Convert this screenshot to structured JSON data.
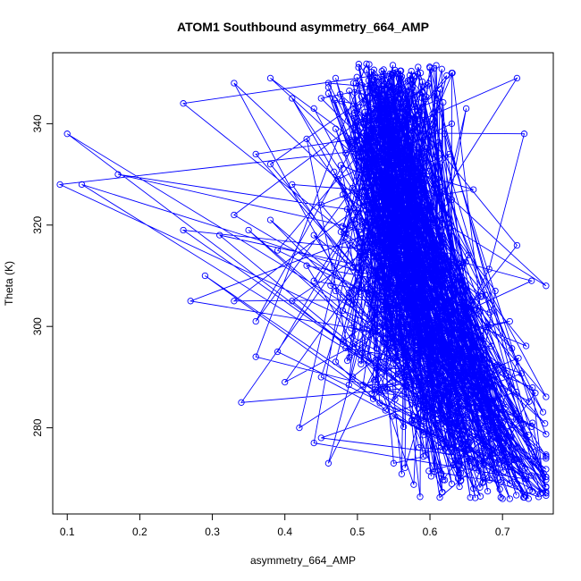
{
  "chart_data": {
    "type": "line",
    "title": "ATOM1 Southbound asymmetry_664_AMP",
    "xlabel": "asymmetry_664_AMP",
    "ylabel": "Theta (K)",
    "xlim": [
      0.08,
      0.77
    ],
    "ylim": [
      263,
      354
    ],
    "x_ticks": [
      0.1,
      0.2,
      0.3,
      0.4,
      0.5,
      0.6,
      0.7
    ],
    "x_tick_labels": [
      "0.1",
      "0.2",
      "0.3",
      "0.4",
      "0.5",
      "0.6",
      "0.7"
    ],
    "y_ticks": [
      280,
      300,
      320,
      340
    ],
    "y_tick_labels": [
      "280",
      "300",
      "320",
      "340"
    ],
    "series_color": "#0000ff",
    "marker": "open-circle",
    "grid": false,
    "legend": "none",
    "point_count": 1000,
    "series": [
      {
        "x_values": [
          0.7,
          0.72,
          0.71,
          0.66,
          0.55,
          0.46,
          0.45,
          0.63,
          0.69,
          0.58,
          0.44,
          0.42,
          0.34,
          0.4,
          0.36,
          0.45,
          0.53,
          0.61,
          0.68,
          0.7,
          0.59,
          0.47,
          0.39,
          0.52,
          0.66,
          0.71,
          0.63,
          0.55,
          0.48,
          0.36,
          0.41,
          0.54,
          0.68,
          0.62,
          0.5,
          0.33,
          0.44,
          0.58,
          0.69,
          0.74,
          0.6,
          0.47,
          0.27,
          0.29,
          0.43,
          0.56,
          0.67,
          0.76,
          0.59,
          0.39,
          0.31,
          0.35,
          0.49,
          0.64,
          0.72,
          0.55,
          0.44,
          0.38,
          0.52,
          0.63,
          0.57,
          0.45,
          0.26,
          0.33,
          0.48,
          0.61,
          0.56,
          0.41,
          0.12,
          0.09,
          0.17,
          0.38,
          0.54,
          0.66,
          0.5,
          0.43,
          0.36,
          0.52,
          0.62,
          0.58,
          0.47,
          0.53,
          0.6,
          0.51,
          0.1,
          0.44,
          0.63,
          0.73,
          0.58,
          0.46,
          0.26,
          0.41,
          0.55,
          0.65,
          0.52,
          0.33,
          0.47,
          0.61,
          0.56,
          0.45,
          0.38,
          0.55,
          0.72,
          0.6,
          0.46,
          0.52,
          0.63
        ],
        "y_values": [
          266,
          269,
          266,
          268,
          273,
          273,
          278,
          282,
          279,
          285,
          277,
          280,
          285,
          289,
          294,
          290,
          287,
          291,
          288,
          292,
          296,
          293,
          295,
          299,
          298,
          301,
          303,
          300,
          297,
          301,
          305,
          302,
          300,
          306,
          308,
          305,
          309,
          304,
          307,
          309,
          311,
          307,
          305,
          310,
          312,
          309,
          306,
          308,
          313,
          315,
          318,
          319,
          316,
          312,
          316,
          320,
          318,
          321,
          323,
          325,
          327,
          324,
          319,
          322,
          326,
          329,
          331,
          328,
          328,
          328,
          330,
          332,
          330,
          327,
          335,
          337,
          334,
          336,
          338,
          341,
          339,
          343,
          340,
          336,
          338,
          343,
          340,
          338,
          344,
          346,
          344,
          345,
          347,
          343,
          346,
          348,
          349,
          346,
          348,
          345,
          349,
          350,
          349,
          351,
          348,
          347,
          350
        ]
      }
    ]
  }
}
